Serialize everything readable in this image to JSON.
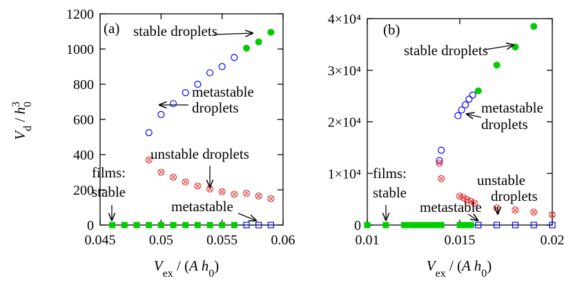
{
  "chart_data": [
    {
      "type": "scatter",
      "panel_label": "(a)",
      "xlim": [
        0.045,
        0.06
      ],
      "xticks": [
        0.045,
        0.05,
        0.055,
        0.06
      ],
      "ylim": [
        0,
        1200
      ],
      "yticks": [
        0,
        200,
        400,
        600,
        800,
        1000,
        1200
      ],
      "ylabel": [
        "V",
        "d",
        " / ",
        "h",
        "0",
        "3"
      ],
      "xlabel": [
        "V",
        "ex",
        " / (",
        "A h",
        "0",
        ")"
      ],
      "series": [
        {
          "color": "#00cc00",
          "marker": "filled-circle",
          "x": [
            0.057,
            0.058,
            0.059
          ],
          "values": [
            1005,
            1040,
            1095
          ]
        },
        {
          "color": "#0000ff",
          "marker": "open-circle",
          "x": [
            0.049,
            0.05,
            0.051,
            0.052,
            0.053,
            0.054,
            0.055,
            0.056
          ],
          "values": [
            525,
            628,
            690,
            752,
            800,
            865,
            900,
            952
          ]
        },
        {
          "color": "#e03030",
          "marker": "circled-x",
          "x": [
            0.049,
            0.05,
            0.051,
            0.052,
            0.053,
            0.054,
            0.055,
            0.056,
            0.057,
            0.058,
            0.059
          ],
          "values": [
            370,
            300,
            272,
            245,
            222,
            205,
            190,
            175,
            180,
            165,
            150
          ]
        },
        {
          "color": "#00cc00",
          "marker": "filled-square",
          "x": [
            0.046,
            0.047,
            0.048,
            0.049,
            0.05,
            0.051,
            0.052,
            0.053,
            0.054,
            0.055,
            0.056
          ],
          "values": [
            0,
            0,
            0,
            0,
            0,
            0,
            0,
            0,
            0,
            0,
            0
          ]
        },
        {
          "color": "#0000ff",
          "marker": "open-square",
          "x": [
            0.057,
            0.058,
            0.059
          ],
          "values": [
            0,
            0,
            0
          ]
        }
      ],
      "annotations": [
        {
          "text": [
            "stable droplets"
          ]
        },
        {
          "text": [
            "metastable",
            "droplets"
          ]
        },
        {
          "text": [
            "unstable droplets"
          ]
        },
        {
          "text": [
            "films:",
            "stable"
          ]
        },
        {
          "text": [
            "metastable"
          ]
        }
      ]
    },
    {
      "type": "scatter",
      "panel_label": "(b)",
      "xlim": [
        0.01,
        0.02
      ],
      "xticks": [
        0.01,
        0.015,
        0.02
      ],
      "ylim": [
        0,
        40000
      ],
      "yticks": [
        0,
        {
          "value": 10000,
          "label": "1×10⁴"
        },
        {
          "value": 20000,
          "label": "2×10⁴"
        },
        {
          "value": 30000,
          "label": "3×10⁴"
        },
        {
          "value": 40000,
          "label": "4×10⁴"
        }
      ],
      "xlabel": [
        "V",
        "ex",
        " / (",
        "A h",
        "0",
        ")"
      ],
      "series": [
        {
          "color": "#00cc00",
          "marker": "filled-circle",
          "x": [
            0.016,
            0.017,
            0.018,
            0.019
          ],
          "values": [
            26000,
            31000,
            34500,
            38500
          ]
        },
        {
          "color": "#0000ff",
          "marker": "open-circle",
          "x": [
            0.0139,
            0.014,
            0.0149,
            0.0151,
            0.0153,
            0.0155,
            0.0157
          ],
          "values": [
            12500,
            14500,
            21200,
            22300,
            23300,
            24400,
            25200
          ]
        },
        {
          "color": "#e03030",
          "marker": "circled-x",
          "x": [
            0.0139,
            0.014,
            0.015,
            0.0152,
            0.0154,
            0.0156,
            0.0158,
            0.017,
            0.018,
            0.019,
            0.02
          ],
          "values": [
            12000,
            9000,
            5600,
            5300,
            4900,
            4600,
            4200,
            3300,
            2900,
            2500,
            2000
          ]
        },
        {
          "color": "#00cc00",
          "marker": "filled-square",
          "x": [
            0.01,
            0.011,
            0.012,
            0.0122,
            0.0124,
            0.0126,
            0.0128,
            0.013,
            0.0132,
            0.0134,
            0.0136,
            0.0138,
            0.014,
            0.015,
            0.0152,
            0.0154,
            0.0156
          ],
          "values": [
            0,
            0,
            0,
            0,
            0,
            0,
            0,
            0,
            0,
            0,
            0,
            0,
            0,
            0,
            0,
            0,
            0
          ]
        },
        {
          "color": "#0000ff",
          "marker": "open-square",
          "x": [
            0.016,
            0.017,
            0.018,
            0.019,
            0.02
          ],
          "values": [
            0,
            0,
            0,
            0,
            0
          ]
        }
      ],
      "annotations": [
        {
          "text": [
            "stable droplets"
          ]
        },
        {
          "text": [
            "metastable",
            "droplets"
          ]
        },
        {
          "text": [
            "unstable",
            "droplets"
          ]
        },
        {
          "text": [
            "films:",
            "stable"
          ]
        },
        {
          "text": [
            "metastable"
          ]
        }
      ]
    }
  ]
}
